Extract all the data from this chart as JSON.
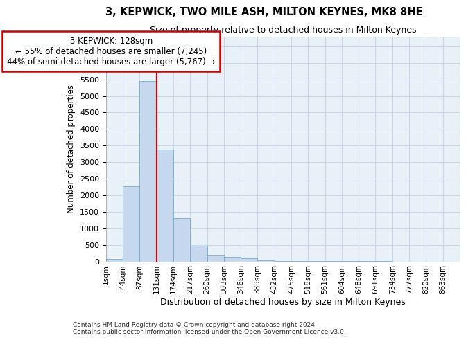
{
  "title": "3, KEPWICK, TWO MILE ASH, MILTON KEYNES, MK8 8HE",
  "subtitle": "Size of property relative to detached houses in Milton Keynes",
  "xlabel": "Distribution of detached houses by size in Milton Keynes",
  "ylabel": "Number of detached properties",
  "footer_line1": "Contains HM Land Registry data © Crown copyright and database right 2024.",
  "footer_line2": "Contains public sector information licensed under the Open Government Licence v3.0.",
  "bin_labels": [
    "1sqm",
    "44sqm",
    "87sqm",
    "131sqm",
    "174sqm",
    "217sqm",
    "260sqm",
    "303sqm",
    "346sqm",
    "389sqm",
    "432sqm",
    "475sqm",
    "518sqm",
    "561sqm",
    "604sqm",
    "648sqm",
    "691sqm",
    "734sqm",
    "777sqm",
    "820sqm",
    "863sqm"
  ],
  "bar_values": [
    70,
    2280,
    5450,
    3380,
    1310,
    480,
    175,
    135,
    90,
    40,
    20,
    10,
    5,
    3,
    2,
    1,
    1,
    0,
    0,
    0,
    0
  ],
  "bar_color": "#c5d8ee",
  "bar_edge_color": "#7aadd4",
  "grid_color": "#c8d8ea",
  "background_color": "#e8f0f8",
  "vline_x": 3,
  "vline_color": "#cc0000",
  "annotation_text": "3 KEPWICK: 128sqm\n← 55% of detached houses are smaller (7,245)\n44% of semi-detached houses are larger (5,767) →",
  "annotation_box_color": "white",
  "annotation_box_edge": "#cc0000",
  "ylim": [
    0,
    6800
  ],
  "yticks": [
    0,
    500,
    1000,
    1500,
    2000,
    2500,
    3000,
    3500,
    4000,
    4500,
    5000,
    5500,
    6000,
    6500
  ]
}
